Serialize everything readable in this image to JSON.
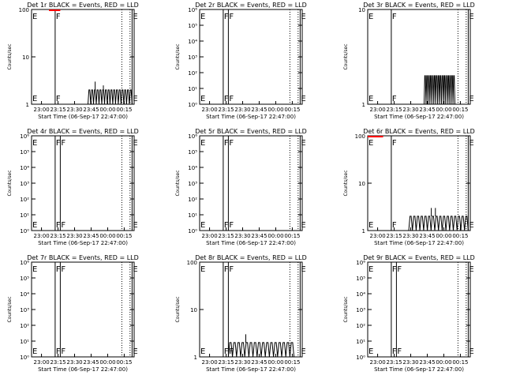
{
  "figure": {
    "xlabel": "Start Time (06-Sep-17 22:47:00)",
    "ylabel": "Counts/sec",
    "time_ticks": [
      "23:00",
      "23:15",
      "23:30",
      "23:45",
      "00:00",
      "00:15"
    ],
    "colors": {
      "events": "#000000",
      "lld": "#ff0000"
    }
  },
  "chart_data": [
    {
      "type": "line",
      "title": "Det 1r BLACK = Events, RED = LLD",
      "scale": "log",
      "ylim": [
        1,
        100
      ],
      "yticks": [
        "1",
        "10",
        "100"
      ],
      "markers": [
        {
          "label": "E",
          "x": 0.0
        },
        {
          "label": "F",
          "x": 0.23
        },
        {
          "label": "E",
          "x": 0.98
        }
      ],
      "events": {
        "x_range": [
          0.55,
          0.98
        ],
        "level": 2,
        "spikes": [
          {
            "x": 0.62,
            "v": 3
          },
          {
            "x": 0.7,
            "v": 2.5
          }
        ]
      },
      "lld": {
        "x_range": [
          0.17,
          0.28
        ],
        "level": 100
      }
    },
    {
      "type": "line",
      "title": "Det 2r BLACK = Events, RED = LLD",
      "scale": "log",
      "ylim": [
        1,
        1000000
      ],
      "yticks": [
        "10⁰",
        "10¹",
        "10²",
        "10³",
        "10⁴",
        "10⁵",
        "10⁶"
      ],
      "markers": [
        {
          "label": "E",
          "x": 0.0
        },
        {
          "label": "F",
          "x": 0.23
        },
        {
          "label": "F",
          "x": 0.28
        },
        {
          "label": "E",
          "x": 0.98
        }
      ]
    },
    {
      "type": "line",
      "title": "Det 3r BLACK = Events, RED = LLD",
      "scale": "log",
      "ylim": [
        1,
        10
      ],
      "yticks": [
        "1",
        "10"
      ],
      "markers": [
        {
          "label": "E",
          "x": 0.0
        },
        {
          "label": "F",
          "x": 0.23
        },
        {
          "label": "E",
          "x": 0.98
        }
      ],
      "events": {
        "x_range": [
          0.55,
          0.85
        ],
        "level": 2,
        "spikes": []
      }
    },
    {
      "type": "line",
      "title": "Det 4r BLACK = Events, RED = LLD",
      "scale": "log",
      "ylim": [
        1,
        1000000
      ],
      "yticks": [
        "10⁰",
        "10¹",
        "10²",
        "10³",
        "10⁴",
        "10⁵",
        "10⁶"
      ],
      "markers": [
        {
          "label": "E",
          "x": 0.0
        },
        {
          "label": "F",
          "x": 0.23
        },
        {
          "label": "F",
          "x": 0.28
        },
        {
          "label": "E",
          "x": 0.98
        }
      ]
    },
    {
      "type": "line",
      "title": "Det 5r BLACK = Events, RED = LLD",
      "scale": "log",
      "ylim": [
        1,
        1000000
      ],
      "yticks": [
        "10⁰",
        "10¹",
        "10²",
        "10³",
        "10⁴",
        "10⁵",
        "10⁶"
      ],
      "markers": [
        {
          "label": "E",
          "x": 0.0
        },
        {
          "label": "F",
          "x": 0.23
        },
        {
          "label": "F",
          "x": 0.28
        },
        {
          "label": "E",
          "x": 0.98
        }
      ]
    },
    {
      "type": "line",
      "title": "Det 6r BLACK = Events, RED = LLD",
      "scale": "log",
      "ylim": [
        1,
        100
      ],
      "yticks": [
        "1",
        "10",
        "100"
      ],
      "markers": [
        {
          "label": "E",
          "x": 0.0
        },
        {
          "label": "F",
          "x": 0.23
        },
        {
          "label": "E",
          "x": 0.98
        }
      ],
      "events": {
        "x_range": [
          0.4,
          0.98
        ],
        "level": 2,
        "spikes": [
          {
            "x": 0.62,
            "v": 3
          },
          {
            "x": 0.66,
            "v": 3
          }
        ]
      },
      "lld": {
        "x_range": [
          0.0,
          0.15
        ],
        "level": 100
      }
    },
    {
      "type": "line",
      "title": "Det 7r BLACK = Events, RED = LLD",
      "scale": "log",
      "ylim": [
        1,
        1000000
      ],
      "yticks": [
        "10⁰",
        "10¹",
        "10²",
        "10³",
        "10⁴",
        "10⁵",
        "10⁶"
      ],
      "markers": [
        {
          "label": "E",
          "x": 0.0
        },
        {
          "label": "F",
          "x": 0.23
        },
        {
          "label": "F",
          "x": 0.28
        },
        {
          "label": "E",
          "x": 0.98
        }
      ]
    },
    {
      "type": "line",
      "title": "Det 8r BLACK = Events, RED = LLD",
      "scale": "log",
      "ylim": [
        1,
        100
      ],
      "yticks": [
        "1",
        "10",
        "100"
      ],
      "markers": [
        {
          "label": "E",
          "x": 0.0
        },
        {
          "label": "F",
          "x": 0.23
        },
        {
          "label": "F",
          "x": 0.28
        },
        {
          "label": "E",
          "x": 0.98
        }
      ],
      "events": {
        "x_range": [
          0.28,
          0.92
        ],
        "level": 2,
        "spikes": [
          {
            "x": 0.45,
            "v": 3
          }
        ]
      }
    },
    {
      "type": "line",
      "title": "Det 9r BLACK = Events, RED = LLD",
      "scale": "log",
      "ylim": [
        1,
        1000000
      ],
      "yticks": [
        "10⁰",
        "10¹",
        "10²",
        "10³",
        "10⁴",
        "10⁵",
        "10⁶"
      ],
      "markers": [
        {
          "label": "E",
          "x": 0.0
        },
        {
          "label": "F",
          "x": 0.23
        },
        {
          "label": "F",
          "x": 0.28
        },
        {
          "label": "E",
          "x": 0.98
        }
      ]
    }
  ]
}
